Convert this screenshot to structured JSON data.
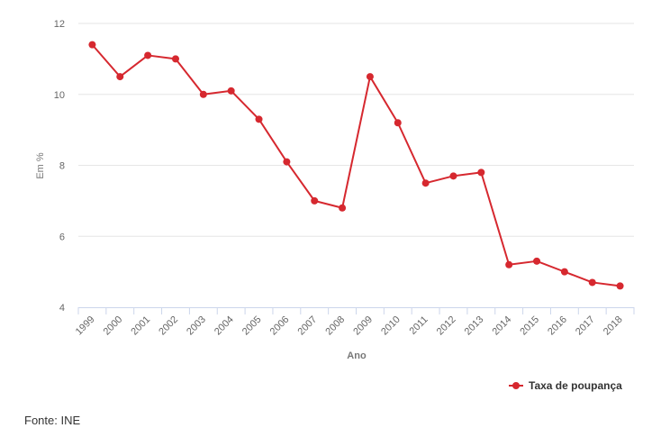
{
  "chart_data": {
    "type": "line",
    "title": "",
    "xlabel": "Ano",
    "ylabel": "Em %",
    "categories": [
      "1999",
      "2000",
      "2001",
      "2002",
      "2003",
      "2004",
      "2005",
      "2006",
      "2007",
      "2008",
      "2009",
      "2010",
      "2011",
      "2012",
      "2013",
      "2014",
      "2015",
      "2016",
      "2017",
      "2018"
    ],
    "series": [
      {
        "name": "Taxa de poupança",
        "color": "#d6282f",
        "values": [
          11.4,
          10.5,
          11.1,
          11.0,
          10.0,
          10.1,
          9.3,
          8.1,
          7.0,
          6.8,
          10.5,
          9.2,
          7.5,
          7.7,
          7.8,
          5.2,
          5.3,
          5.0,
          4.7,
          4.6
        ]
      }
    ],
    "ylim": [
      4,
      12
    ],
    "yticks": [
      "4",
      "6",
      "8",
      "10",
      "12"
    ],
    "grid": true,
    "legend": "bottom-right"
  },
  "source": "Fonte: INE"
}
